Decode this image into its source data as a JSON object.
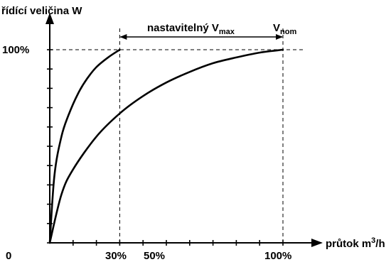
{
  "chart_data": {
    "type": "line",
    "ylabel": "řídící veličina W",
    "xlabel_prefix": "průtok m",
    "xlabel_sup": "3",
    "xlabel_suffix": "/h",
    "ytick_label": "100%",
    "xtick_labels": [
      "0",
      "30%",
      "50%",
      "100%"
    ],
    "xlim": [
      0,
      100
    ],
    "ylim": [
      0,
      100
    ],
    "range_label_main": "nastavitelný V",
    "range_label_sub": "max",
    "range": [
      30,
      100
    ],
    "nominal_label_main": "V",
    "nominal_label_sub": "nom",
    "series": [
      {
        "x": [
          0,
          2,
          5,
          8,
          12,
          16,
          20,
          25,
          30
        ],
        "values": [
          0,
          35,
          55,
          66,
          77,
          85,
          91,
          96,
          100
        ]
      },
      {
        "x": [
          0,
          5,
          10,
          20,
          30,
          40,
          50,
          60,
          70,
          80,
          90,
          100
        ],
        "values": [
          0,
          25,
          38,
          55,
          67,
          76,
          83,
          88.5,
          93,
          96,
          98.5,
          100
        ]
      }
    ],
    "grid": false
  }
}
